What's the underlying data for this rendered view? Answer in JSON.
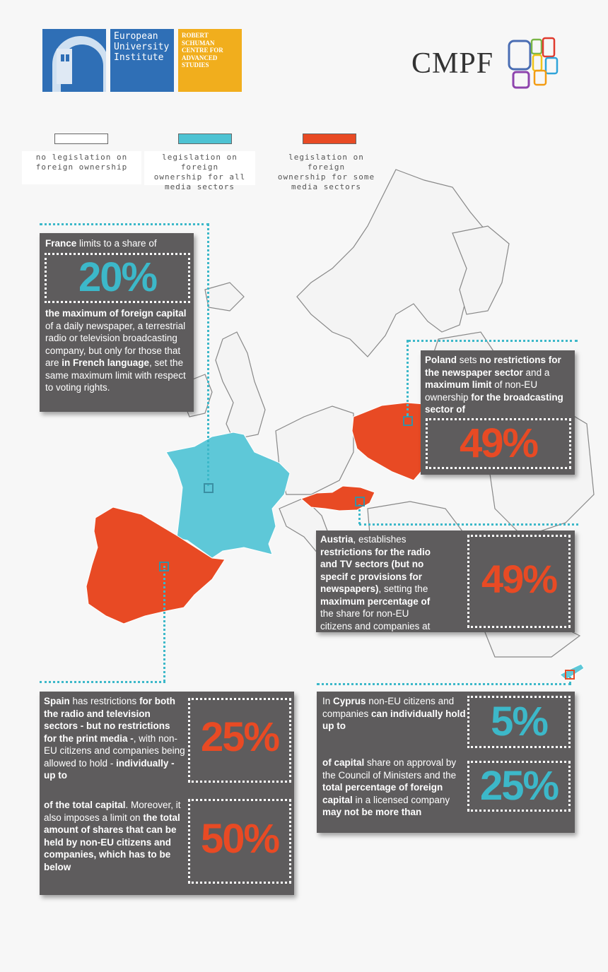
{
  "header": {
    "eui_name": "European University Institute",
    "eui_lines": [
      "European",
      "University",
      "Institute"
    ],
    "rsc_lines": [
      "ROBERT",
      "SCHUMAN",
      "CENTRE FOR",
      "ADVANCED",
      "STUDIES"
    ],
    "cmpf": "CMPF"
  },
  "legend": [
    {
      "color": "#ffffff",
      "lines": [
        "no legislation on",
        "foreign ownership"
      ]
    },
    {
      "color": "#4ec3d3",
      "lines": [
        "legislation on foreign",
        "ownership for all",
        "media sectors"
      ]
    },
    {
      "color": "#e84a24",
      "lines": [
        "legislation on foreign",
        "ownership for some",
        "media sectors"
      ]
    }
  ],
  "colors": {
    "teal": "#3cb8c9",
    "red": "#e84a24",
    "box": "#5e5c5d"
  },
  "france": {
    "country": "France",
    "intro": " limits to a share of",
    "value": "20%",
    "p1": "the maximum of foreign capital",
    "p2": " of a daily newspaper, a terrestrial radio or television broadcasting company, but only for those that are ",
    "p3": "in French language",
    "p4": ", set the same maximum limit with respect to voting rights."
  },
  "poland": {
    "country": "Poland",
    "t1": " sets ",
    "t2": "no restrictions for the newspaper sector",
    "t3": " and a ",
    "t4": "maximum limit",
    "t5": " of non-EU ownership ",
    "t6": "for the broadcasting sector of",
    "value": "49%"
  },
  "austria": {
    "country": "Austria",
    "t1": ", establishes ",
    "t2": "restrictions for the radio and TV sectors (but no specif c provisions for newspapers)",
    "t3": ", setting the ",
    "t4": "maximum percentage of",
    "t5": " the share for non-EU citizens and companies at",
    "value": "49%"
  },
  "spain": {
    "country": "Spain",
    "t1": " has restrictions ",
    "t2": "for both the radio and television sectors - but no restrictions for the print media -",
    "t3": ", with non-EU citizens and companies being allowed to hold - ",
    "t4": "individually - up to",
    "value1": "25%",
    "t5": "of the total capital",
    "t6": ". Moreover, it also imposes a limit on ",
    "t7": "the total amount of shares that can be held by non-EU citizens and companies, which has to be below",
    "value2": "50%"
  },
  "cyprus": {
    "t0": "In ",
    "country": "Cyprus",
    "t1": " non-EU citizens and companies ",
    "t2": "can individually hold up to",
    "value1": "5%",
    "t3": "of capital",
    "t4": " share on approval by the Council of Ministers and the ",
    "t5": "total percentage of foreign capital",
    "t6": " in a licensed company ",
    "t7": "may not be more than",
    "value2": "25%"
  }
}
